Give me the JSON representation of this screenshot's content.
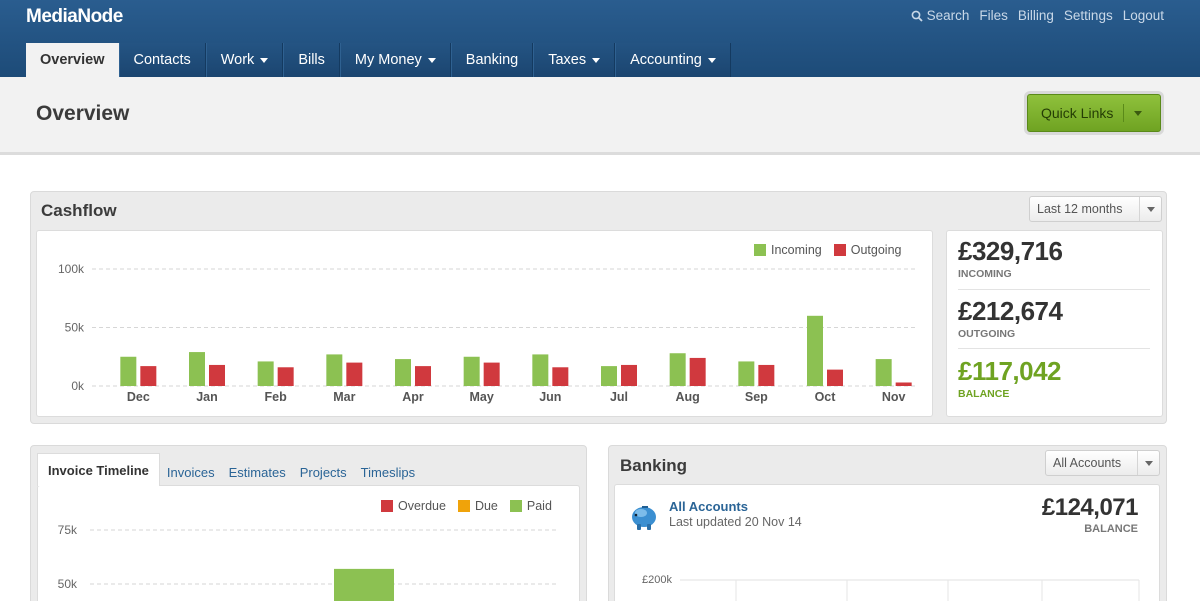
{
  "app": {
    "logo": "MediaNode",
    "utility": {
      "search": "Search",
      "files": "Files",
      "billing": "Billing",
      "settings": "Settings",
      "logout": "Logout"
    }
  },
  "nav": {
    "overview": "Overview",
    "contacts": "Contacts",
    "work": "Work",
    "bills": "Bills",
    "my_money": "My Money",
    "banking": "Banking",
    "taxes": "Taxes",
    "accounting": "Accounting"
  },
  "header": {
    "title": "Overview",
    "quick_links": "Quick Links"
  },
  "cashflow": {
    "title": "Cashflow",
    "period": "Last 12 months",
    "legend": {
      "incoming": "Incoming",
      "outgoing": "Outgoing"
    },
    "stats": {
      "incoming_value": "£329,716",
      "incoming_label": "INCOMING",
      "outgoing_value": "£212,674",
      "outgoing_label": "OUTGOING",
      "balance_value": "£117,042",
      "balance_label": "BALANCE"
    }
  },
  "invoices": {
    "tabs": {
      "timeline": "Invoice Timeline",
      "invoices": "Invoices",
      "estimates": "Estimates",
      "projects": "Projects",
      "timeslips": "Timeslips"
    },
    "legend": {
      "overdue": "Overdue",
      "due": "Due",
      "paid": "Paid"
    }
  },
  "banking": {
    "title": "Banking",
    "accounts_filter": "All Accounts",
    "account_name": "All Accounts",
    "last_updated": "Last updated 20 Nov 14",
    "balance_value": "£124,071",
    "balance_label": "BALANCE"
  },
  "colors": {
    "incoming": "#8cc152",
    "outgoing": "#d0393e",
    "overdue": "#d0393e",
    "due": "#f0a30a",
    "paid": "#8cc152",
    "accent": "#6fa322"
  },
  "chart_data": [
    {
      "type": "bar",
      "categories": [
        "Dec",
        "Jan",
        "Feb",
        "Mar",
        "Apr",
        "May",
        "Jun",
        "Jul",
        "Aug",
        "Sep",
        "Oct",
        "Nov"
      ],
      "series": [
        {
          "name": "Incoming",
          "values": [
            25000,
            29000,
            21000,
            27000,
            23000,
            25000,
            27000,
            17000,
            28000,
            21000,
            60000,
            23000
          ]
        },
        {
          "name": "Outgoing",
          "values": [
            17000,
            18000,
            16000,
            20000,
            17000,
            20000,
            16000,
            18000,
            24000,
            18000,
            14000,
            3000
          ]
        }
      ],
      "ylim": [
        0,
        100000
      ],
      "yticks": [
        "0k",
        "50k",
        "100k"
      ],
      "grid": true,
      "legend": "top-right"
    },
    {
      "type": "bar",
      "categories": [
        ""
      ],
      "series": [
        {
          "name": "Overdue",
          "values": [
            0
          ]
        },
        {
          "name": "Due",
          "values": [
            0
          ]
        },
        {
          "name": "Paid",
          "values": [
            57000
          ]
        }
      ],
      "yticks": [
        "75k",
        "50k"
      ],
      "grid": true,
      "legend": "top-right"
    },
    {
      "type": "line",
      "yticks": [
        "£200k"
      ],
      "grid": true
    }
  ]
}
